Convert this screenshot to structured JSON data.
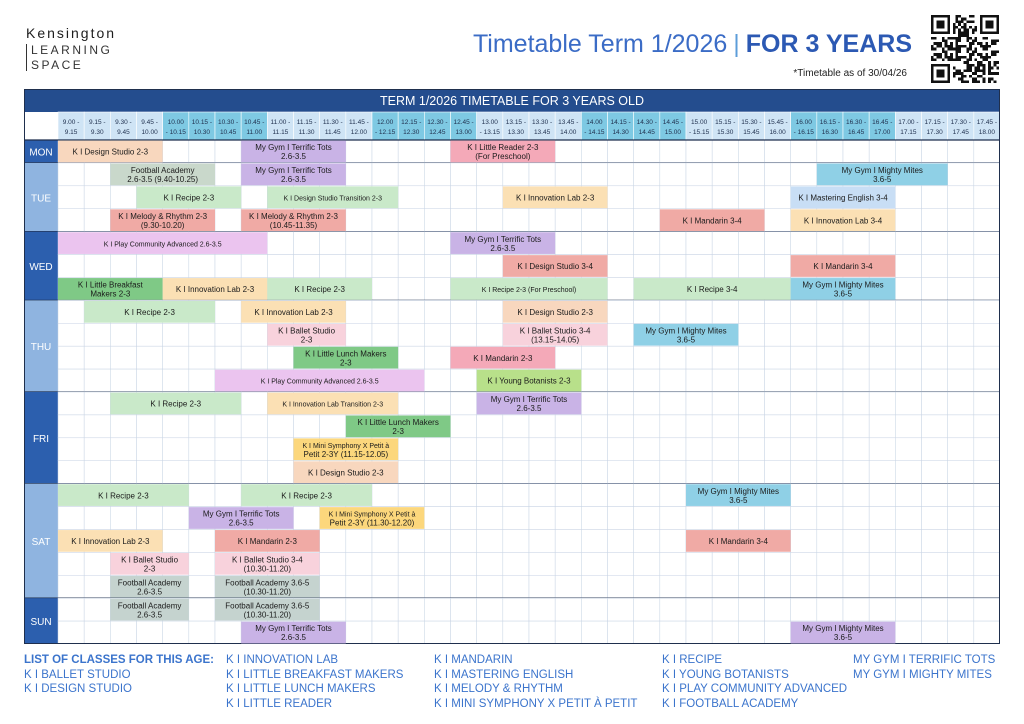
{
  "brand": {
    "line1": "Kensington",
    "line2": "LEARNING",
    "line3": "SPACE"
  },
  "header": {
    "title": "Timetable Term 1/2026",
    "separator": "|",
    "title_bold": "FOR 3 YEARS",
    "as_of": "*Timetable as of 30/04/26"
  },
  "qr_icon": "qr-code-icon",
  "table": {
    "banner": "TERM 1/2026 TIMETABLE FOR 3 YEARS OLD",
    "times": [
      [
        "9.00 -",
        "9.15"
      ],
      [
        "9.15 -",
        "9.30"
      ],
      [
        "9.30 -",
        "9.45"
      ],
      [
        "9.45 -",
        "10.00"
      ],
      [
        "10.00",
        "- 10.15"
      ],
      [
        "10.15 -",
        "10.30"
      ],
      [
        "10.30 -",
        "10.45"
      ],
      [
        "10.45 -",
        "11.00"
      ],
      [
        "11.00 -",
        "11.15"
      ],
      [
        "11.15 -",
        "11.30"
      ],
      [
        "11.30 -",
        "11.45"
      ],
      [
        "11.45 -",
        "12.00"
      ],
      [
        "12.00",
        "- 12.15"
      ],
      [
        "12.15 -",
        "12.30"
      ],
      [
        "12.30 -",
        "12.45"
      ],
      [
        "12.45 -",
        "13.00"
      ],
      [
        "13.00",
        "- 13.15"
      ],
      [
        "13.15 -",
        "13.30"
      ],
      [
        "13.30 -",
        "13.45"
      ],
      [
        "13.45 -",
        "14.00"
      ],
      [
        "14.00",
        "- 14.15"
      ],
      [
        "14.15 -",
        "14.30"
      ],
      [
        "14.30 -",
        "14.45"
      ],
      [
        "14.45 -",
        "15.00"
      ],
      [
        "15.00",
        "- 15.15"
      ],
      [
        "15.15 -",
        "15.30"
      ],
      [
        "15.30 -",
        "15.45"
      ],
      [
        "15.45 -",
        "16.00"
      ],
      [
        "16.00",
        "- 16.15"
      ],
      [
        "16.15 -",
        "16.30"
      ],
      [
        "16.30 -",
        "16.45"
      ],
      [
        "16.45 -",
        "17.00"
      ],
      [
        "17.00 -",
        "17.15"
      ],
      [
        "17.15 -",
        "17.30"
      ],
      [
        "17.30 -",
        "17.45"
      ],
      [
        "17.45 -",
        "18.00"
      ]
    ],
    "days": [
      {
        "name": "MON",
        "rows": 1
      },
      {
        "name": "TUE",
        "rows": 3
      },
      {
        "name": "WED",
        "rows": 3
      },
      {
        "name": "THU",
        "rows": 4
      },
      {
        "name": "FRI",
        "rows": 4
      },
      {
        "name": "SAT",
        "rows": 5
      },
      {
        "name": "SUN",
        "rows": 2
      }
    ],
    "colors": {
      "peach": "#f8d7be",
      "purple": "#c9b3e6",
      "pink": "#f4a9b8",
      "sage": "#c9d8cb",
      "green": "#c9e9c9",
      "salmon": "#f0aaa5",
      "cream": "#fbe0b4",
      "blue": "#8fd0e6",
      "lightblue": "#c8def5",
      "lavender": "#ebc4ef",
      "darkgreen": "#7fc986",
      "lightpink": "#f8d2dc",
      "lime": "#b8e08a",
      "yellow": "#fcd77c",
      "gray": "#c5d3cf"
    },
    "classes": [
      {
        "row": 0,
        "start": 0,
        "span": 4,
        "color": "peach",
        "lines": [
          "K I Design Studio 2-3"
        ]
      },
      {
        "row": 0,
        "start": 7,
        "span": 4,
        "color": "purple",
        "lines": [
          "My Gym I Terrific Tots",
          "2.6-3.5"
        ]
      },
      {
        "row": 0,
        "start": 15,
        "span": 4,
        "color": "pink",
        "lines": [
          "K I Little Reader 2-3",
          "(For Preschool)"
        ]
      },
      {
        "row": 1,
        "start": 2,
        "span": 4,
        "color": "sage",
        "lines": [
          "Football Academy",
          "2.6-3.5 (9.40-10.25)"
        ]
      },
      {
        "row": 1,
        "start": 7,
        "span": 4,
        "color": "purple",
        "lines": [
          "My Gym I Terrific Tots",
          "2.6-3.5"
        ]
      },
      {
        "row": 1,
        "start": 29,
        "span": 5,
        "color": "blue",
        "lines": [
          "My Gym I Mighty Mites",
          "3.6-5"
        ]
      },
      {
        "row": 2,
        "start": 3,
        "span": 4,
        "color": "green",
        "lines": [
          "K I Recipe 2-3"
        ]
      },
      {
        "row": 2,
        "start": 8,
        "span": 5,
        "color": "green",
        "lines": [
          "K I Design Studio Transition 2-3"
        ]
      },
      {
        "row": 2,
        "start": 17,
        "span": 4,
        "color": "cream",
        "lines": [
          "K I Innovation Lab 2-3"
        ]
      },
      {
        "row": 2,
        "start": 28,
        "span": 4,
        "color": "lightblue",
        "lines": [
          "K I Mastering English  3-4"
        ]
      },
      {
        "row": 3,
        "start": 2,
        "span": 4,
        "color": "salmon",
        "lines": [
          "K I Melody & Rhythm 2-3",
          "(9.30-10.20)"
        ]
      },
      {
        "row": 3,
        "start": 7,
        "span": 4,
        "color": "salmon",
        "lines": [
          "K I Melody & Rhythm 2-3",
          "(10.45-11.35)"
        ]
      },
      {
        "row": 3,
        "start": 23,
        "span": 4,
        "color": "salmon",
        "lines": [
          "K I Mandarin 3-4"
        ]
      },
      {
        "row": 3,
        "start": 28,
        "span": 4,
        "color": "cream",
        "lines": [
          "K I Innovation Lab 3-4"
        ]
      },
      {
        "row": 4,
        "start": 0,
        "span": 8,
        "color": "lavender",
        "lines": [
          "K I Play Community Advanced 2.6-3.5"
        ]
      },
      {
        "row": 4,
        "start": 15,
        "span": 4,
        "color": "purple",
        "lines": [
          "My Gym I Terrific Tots",
          "2.6-3.5"
        ]
      },
      {
        "row": 5,
        "start": 17,
        "span": 4,
        "color": "salmon",
        "lines": [
          "K I Design Studio 3-4"
        ]
      },
      {
        "row": 5,
        "start": 28,
        "span": 4,
        "color": "salmon",
        "lines": [
          "K I Mandarin 3-4"
        ]
      },
      {
        "row": 6,
        "start": 0,
        "span": 4,
        "color": "darkgreen",
        "lines": [
          "K I Little Breakfast",
          "Makers 2-3"
        ]
      },
      {
        "row": 6,
        "start": 4,
        "span": 4,
        "color": "cream",
        "lines": [
          "K I Innovation Lab 2-3"
        ]
      },
      {
        "row": 6,
        "start": 8,
        "span": 4,
        "color": "green",
        "lines": [
          "K I Recipe 2-3"
        ]
      },
      {
        "row": 6,
        "start": 15,
        "span": 6,
        "color": "green",
        "lines": [
          "K I Recipe 2-3 (For Preschool)"
        ]
      },
      {
        "row": 6,
        "start": 22,
        "span": 6,
        "color": "green",
        "lines": [
          "K I Recipe 3-4"
        ]
      },
      {
        "row": 6,
        "start": 28,
        "span": 4,
        "color": "blue",
        "lines": [
          "My Gym I Mighty Mites",
          "3.6-5"
        ]
      },
      {
        "row": 7,
        "start": 1,
        "span": 5,
        "color": "green",
        "lines": [
          "K I Recipe 2-3"
        ]
      },
      {
        "row": 7,
        "start": 7,
        "span": 4,
        "color": "cream",
        "lines": [
          "K I Innovation Lab 2-3"
        ]
      },
      {
        "row": 7,
        "start": 17,
        "span": 4,
        "color": "peach",
        "lines": [
          "K I Design Studio 2-3"
        ]
      },
      {
        "row": 8,
        "start": 8,
        "span": 3,
        "color": "lightpink",
        "lines": [
          "K I Ballet Studio",
          "2-3"
        ]
      },
      {
        "row": 8,
        "start": 17,
        "span": 4,
        "color": "lightpink",
        "lines": [
          "K I Ballet Studio 3-4",
          "(13.15-14.05)"
        ]
      },
      {
        "row": 8,
        "start": 22,
        "span": 4,
        "color": "blue",
        "lines": [
          "My Gym I Mighty Mites",
          "3.6-5"
        ]
      },
      {
        "row": 9,
        "start": 9,
        "span": 4,
        "color": "darkgreen",
        "lines": [
          "K I Little Lunch Makers",
          "2-3"
        ]
      },
      {
        "row": 9,
        "start": 15,
        "span": 4,
        "color": "pink",
        "lines": [
          "K I Mandarin 2-3"
        ]
      },
      {
        "row": 10,
        "start": 6,
        "span": 8,
        "color": "lavender",
        "lines": [
          "K I Play Community Advanced 2.6-3.5"
        ]
      },
      {
        "row": 10,
        "start": 16,
        "span": 4,
        "color": "lime",
        "lines": [
          "K I Young Botanists 2-3"
        ]
      },
      {
        "row": 11,
        "start": 2,
        "span": 5,
        "color": "green",
        "lines": [
          "K I Recipe 2-3"
        ]
      },
      {
        "row": 11,
        "start": 8,
        "span": 5,
        "color": "cream",
        "lines": [
          "K I Innovation Lab Transition 2-3"
        ]
      },
      {
        "row": 11,
        "start": 16,
        "span": 4,
        "color": "purple",
        "lines": [
          "My Gym I Terrific Tots",
          "2.6-3.5"
        ]
      },
      {
        "row": 12,
        "start": 11,
        "span": 4,
        "color": "darkgreen",
        "lines": [
          "K I Little Lunch Makers",
          "2-3"
        ]
      },
      {
        "row": 13,
        "start": 9,
        "span": 4,
        "color": "yellow",
        "lines": [
          "K I Mini Symphony X Petit à",
          "Petit  2-3Y (11.15-12.05)"
        ]
      },
      {
        "row": 14,
        "start": 9,
        "span": 4,
        "color": "peach",
        "lines": [
          "K I Design Studio 2-3"
        ]
      },
      {
        "row": 15,
        "start": 0,
        "span": 5,
        "color": "green",
        "lines": [
          "K I Recipe 2-3"
        ]
      },
      {
        "row": 15,
        "start": 7,
        "span": 5,
        "color": "green",
        "lines": [
          "K I Recipe 2-3"
        ]
      },
      {
        "row": 15,
        "start": 24,
        "span": 4,
        "color": "blue",
        "lines": [
          "My Gym I Mighty Mites",
          "3.6-5"
        ]
      },
      {
        "row": 16,
        "start": 5,
        "span": 4,
        "color": "purple",
        "lines": [
          "My Gym I Terrific Tots",
          "2.6-3.5"
        ]
      },
      {
        "row": 16,
        "start": 10,
        "span": 4,
        "color": "yellow",
        "lines": [
          "K I Mini Symphony X Petit à",
          "Petit 2-3Y (11.30-12.20)"
        ]
      },
      {
        "row": 17,
        "start": 0,
        "span": 4,
        "color": "cream",
        "lines": [
          "K I Innovation Lab 2-3"
        ]
      },
      {
        "row": 17,
        "start": 6,
        "span": 4,
        "color": "salmon",
        "lines": [
          "K I Mandarin 2-3"
        ]
      },
      {
        "row": 17,
        "start": 24,
        "span": 4,
        "color": "salmon",
        "lines": [
          "K I Mandarin 3-4"
        ]
      },
      {
        "row": 18,
        "start": 2,
        "span": 3,
        "color": "lightpink",
        "lines": [
          "K I Ballet Studio",
          "2-3"
        ]
      },
      {
        "row": 18,
        "start": 6,
        "span": 4,
        "color": "lightpink",
        "lines": [
          "K I Ballet Studio 3-4",
          "(10.30-11.20)"
        ]
      },
      {
        "row": 19,
        "start": 2,
        "span": 3,
        "color": "gray",
        "lines": [
          "Football Academy",
          "2.6-3.5"
        ]
      },
      {
        "row": 19,
        "start": 6,
        "span": 4,
        "color": "gray",
        "lines": [
          "Football Academy 3.6-5",
          "(10.30-11.20)"
        ]
      },
      {
        "row": 20,
        "start": 2,
        "span": 3,
        "color": "gray",
        "lines": [
          "Football Academy",
          "2.6-3.5"
        ]
      },
      {
        "row": 20,
        "start": 6,
        "span": 4,
        "color": "gray",
        "lines": [
          "Football Academy 3.6-5",
          "(10.30-11.20)"
        ]
      },
      {
        "row": 21,
        "start": 7,
        "span": 4,
        "color": "purple",
        "lines": [
          "My Gym I Terrific Tots",
          "2.6-3.5"
        ]
      },
      {
        "row": 21,
        "start": 28,
        "span": 4,
        "color": "purple",
        "lines": [
          "My Gym I Mighty Mites",
          "3.6-5"
        ]
      }
    ]
  },
  "list": {
    "heading": "LIST OF CLASSES FOR THIS AGE:",
    "col1": [
      "K I BALLET STUDIO",
      "K I DESIGN STUDIO"
    ],
    "col2": [
      "K I INNOVATION LAB",
      "K I LITTLE BREAKFAST MAKERS",
      "K I LITTLE LUNCH MAKERS",
      "K I LITTLE READER"
    ],
    "col3": [
      "K I MANDARIN",
      "K I MASTERING ENGLISH",
      "K I MELODY & RHYTHM",
      "K I MINI SYMPHONY X PETIT À PETIT"
    ],
    "col4": [
      "K I RECIPE",
      "K I YOUNG BOTANISTS",
      "K I PLAY COMMUNITY ADVANCED",
      "K I FOOTBALL ACADEMY"
    ],
    "col5": [
      "MY GYM I TERRIFIC TOTS",
      "MY GYM I MIGHTY MITES"
    ]
  }
}
